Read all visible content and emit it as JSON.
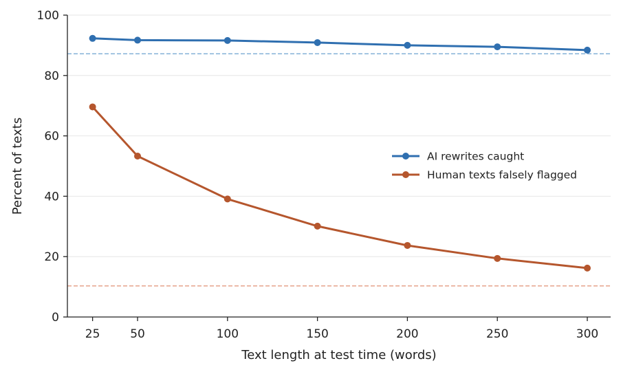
{
  "chart_data": {
    "type": "line",
    "xlabel": "Text length at test time (words)",
    "ylabel": "Percent of texts",
    "x": [
      25,
      50,
      100,
      150,
      200,
      250,
      300
    ],
    "xticks": [
      25,
      50,
      100,
      150,
      200,
      250,
      300
    ],
    "yticks": [
      0,
      20,
      40,
      60,
      80,
      100
    ],
    "xlim": [
      11,
      313
    ],
    "ylim": [
      0,
      100
    ],
    "grid": "horizontal",
    "legend_position": "right",
    "series": [
      {
        "name": "AI rewrites caught",
        "color": "#2f6fb0",
        "values": [
          92.3,
          91.7,
          91.6,
          90.9,
          90.0,
          89.5,
          88.4
        ]
      },
      {
        "name": "Human texts falsely flagged",
        "color": "#b5562d",
        "values": [
          69.6,
          53.3,
          39.1,
          30.1,
          23.7,
          19.4,
          16.2
        ]
      }
    ],
    "reference_lines": [
      {
        "value": 87.2,
        "color": "#7aaad4",
        "style": "dashed"
      },
      {
        "value": 10.3,
        "color": "#e39a80",
        "style": "dashed"
      }
    ]
  }
}
